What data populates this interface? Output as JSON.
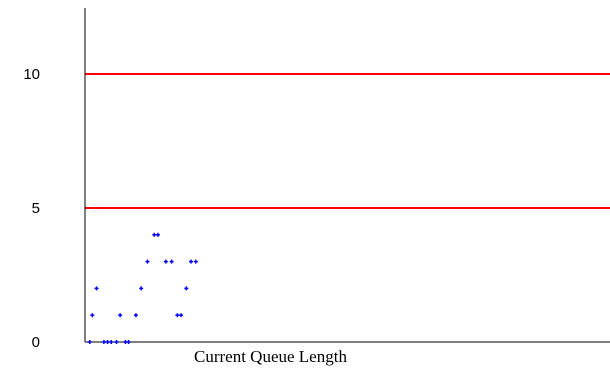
{
  "chart_data": {
    "type": "scatter",
    "title": "",
    "xlabel": "Current Queue Length",
    "ylabel": "",
    "ylim": [
      0,
      12
    ],
    "xlim": [
      0,
      100
    ],
    "y_ticks": [
      "0",
      "5",
      "10"
    ],
    "y_tick_values": [
      0,
      5,
      10
    ],
    "threshold_lines": [
      {
        "value": 5,
        "color": "#ff0000"
      },
      {
        "value": 10,
        "color": "#ff0000"
      }
    ],
    "series": [
      {
        "color": "#0000ff",
        "points": [
          {
            "x": 0.9,
            "y": 0
          },
          {
            "x": 1.4,
            "y": 1
          },
          {
            "x": 2.2,
            "y": 2
          },
          {
            "x": 3.6,
            "y": 0
          },
          {
            "x": 4.3,
            "y": 0
          },
          {
            "x": 5.0,
            "y": 0
          },
          {
            "x": 6.0,
            "y": 0
          },
          {
            "x": 6.7,
            "y": 1
          },
          {
            "x": 7.7,
            "y": 0
          },
          {
            "x": 8.3,
            "y": 0
          },
          {
            "x": 9.7,
            "y": 1
          },
          {
            "x": 10.7,
            "y": 2
          },
          {
            "x": 11.9,
            "y": 3
          },
          {
            "x": 13.2,
            "y": 4
          },
          {
            "x": 13.9,
            "y": 4
          },
          {
            "x": 15.4,
            "y": 3
          },
          {
            "x": 16.5,
            "y": 3
          },
          {
            "x": 17.6,
            "y": 1
          },
          {
            "x": 18.3,
            "y": 1
          },
          {
            "x": 19.3,
            "y": 2
          },
          {
            "x": 20.2,
            "y": 3
          },
          {
            "x": 21.1,
            "y": 3
          }
        ]
      }
    ],
    "grid": false,
    "colors": {
      "axis": "#000000",
      "threshold": "#ff0000",
      "points": "#0000ff"
    }
  }
}
